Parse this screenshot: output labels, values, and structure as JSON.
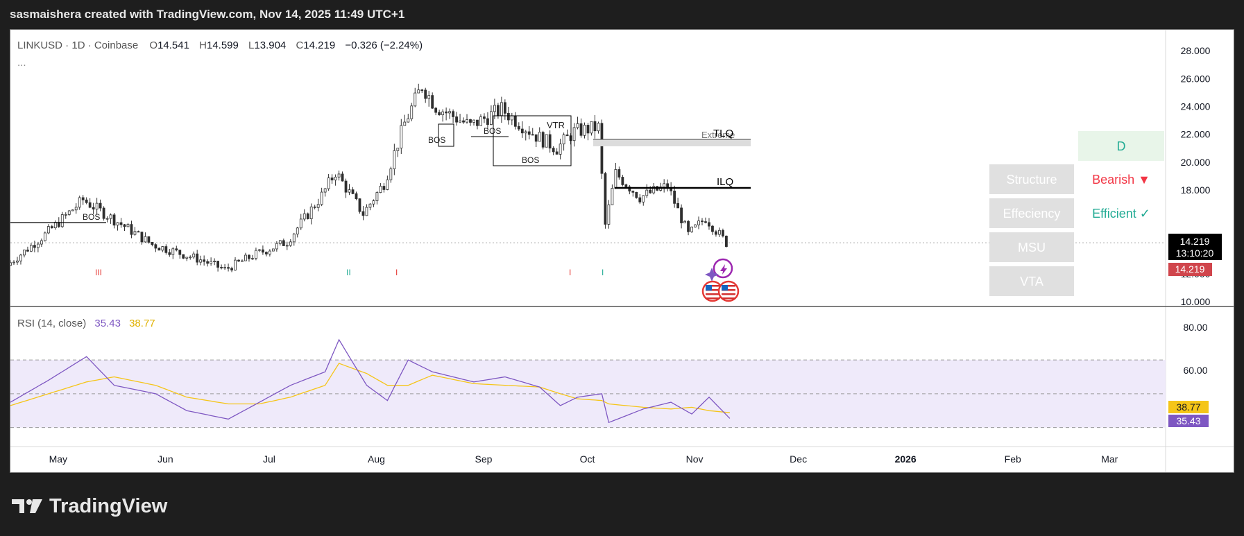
{
  "header": {
    "caption": "sasmaishera created with TradingView.com, Nov 14, 2025 11:49 UTC+1"
  },
  "footer": {
    "brand": "TradingView"
  },
  "legend": {
    "symbol": "LINKUSD · 1D · Coinbase",
    "open_label": "O",
    "open": "14.541",
    "high_label": "H",
    "high": "14.599",
    "low_label": "L",
    "low": "13.904",
    "close_label": "C",
    "close": "14.219",
    "change": "−0.326 (−2.24%)",
    "more": "..."
  },
  "price_scale": {
    "ticks": [
      "28.000",
      "26.000",
      "24.000",
      "22.000",
      "20.000",
      "18.000",
      "14.219",
      "12.000",
      "10.000"
    ],
    "last_price": "14.219",
    "countdown": "13:10:20",
    "last_price_tag": "14.219"
  },
  "rsi": {
    "title": "RSI (14, close)",
    "value": "35.43",
    "ma_value": "38.77",
    "ticks": [
      "80.00",
      "60.00"
    ],
    "label_rsi": "35.43",
    "label_ma": "38.77"
  },
  "time_axis": [
    "May",
    "Jun",
    "Jul",
    "Aug",
    "Sep",
    "Oct",
    "Nov",
    "Dec",
    "2026",
    "Feb",
    "Mar"
  ],
  "annotations": {
    "bos": [
      "BOS",
      "BOS",
      "BOS",
      "BOS"
    ],
    "vtr": "VTR",
    "tlq": "TLQ",
    "extreme": "Extreme",
    "ilq": "ILQ",
    "session_marks": [
      "III",
      "II",
      "I",
      "I",
      "I"
    ]
  },
  "table": {
    "timeframe": "D",
    "rows": [
      {
        "label": "Structure",
        "value": "Bearish ▼"
      },
      {
        "label": "Effeciency",
        "value": "Efficient ✓"
      },
      {
        "label": "MSU",
        "value": ""
      },
      {
        "label": "VTA",
        "value": ""
      }
    ]
  },
  "colors": {
    "up": "#2e2e2e",
    "down": "#2e2e2e",
    "rsi": "#7e57c2",
    "rsi_ma": "#f5c518",
    "bearish": "#f23645",
    "efficient": "#22ab94",
    "price_tag": "#d0454c",
    "panel_bg": "#e0e0e0"
  },
  "chart_data": {
    "type": "candlestick",
    "price_axis_range": [
      10,
      29
    ],
    "x_range": [
      "2025-04-20",
      "2026-03-20"
    ],
    "candles_sampled_close": {
      "dates": [
        "2025-04-20",
        "2025-05-01",
        "2025-05-12",
        "2025-05-24",
        "2025-06-01",
        "2025-06-15",
        "2025-06-22",
        "2025-07-01",
        "2025-07-10",
        "2025-07-20",
        "2025-07-24",
        "2025-08-01",
        "2025-08-07",
        "2025-08-13",
        "2025-08-18",
        "2025-08-22",
        "2025-09-01",
        "2025-09-10",
        "2025-09-20",
        "2025-09-26",
        "2025-10-01",
        "2025-10-08",
        "2025-10-10",
        "2025-10-13",
        "2025-10-20",
        "2025-10-28",
        "2025-11-03",
        "2025-11-08",
        "2025-11-14"
      ],
      "close": [
        12.6,
        14.8,
        17.3,
        15.4,
        14.1,
        13.0,
        12.3,
        13.4,
        14.3,
        17.6,
        19.3,
        16.3,
        18.5,
        22.8,
        25.5,
        24.0,
        22.6,
        23.8,
        21.9,
        21.0,
        22.2,
        22.5,
        15.5,
        19.2,
        17.5,
        18.3,
        14.8,
        16.0,
        14.219
      ]
    },
    "rsi_series": {
      "dates": [
        "2025-04-20",
        "2025-05-01",
        "2025-05-12",
        "2025-05-20",
        "2025-06-01",
        "2025-06-10",
        "2025-06-22",
        "2025-07-01",
        "2025-07-10",
        "2025-07-20",
        "2025-07-24",
        "2025-08-01",
        "2025-08-07",
        "2025-08-13",
        "2025-08-20",
        "2025-09-01",
        "2025-09-10",
        "2025-09-20",
        "2025-09-26",
        "2025-10-01",
        "2025-10-08",
        "2025-10-10",
        "2025-10-20",
        "2025-10-28",
        "2025-11-03",
        "2025-11-08",
        "2025-11-14"
      ],
      "rsi": [
        45,
        58,
        72,
        55,
        50,
        40,
        35,
        45,
        55,
        63,
        82,
        55,
        46,
        70,
        63,
        57,
        60,
        54,
        43,
        48,
        50,
        33,
        41,
        45,
        38,
        48,
        35.43
      ],
      "ma": [
        43,
        50,
        57,
        60,
        55,
        48,
        44,
        44,
        48,
        55,
        68,
        62,
        55,
        55,
        61,
        56,
        55,
        54,
        50,
        47,
        46,
        44,
        42,
        41,
        42,
        40,
        38.77
      ],
      "axis_range": [
        20,
        100
      ],
      "bands": [
        30,
        50,
        70
      ]
    }
  }
}
